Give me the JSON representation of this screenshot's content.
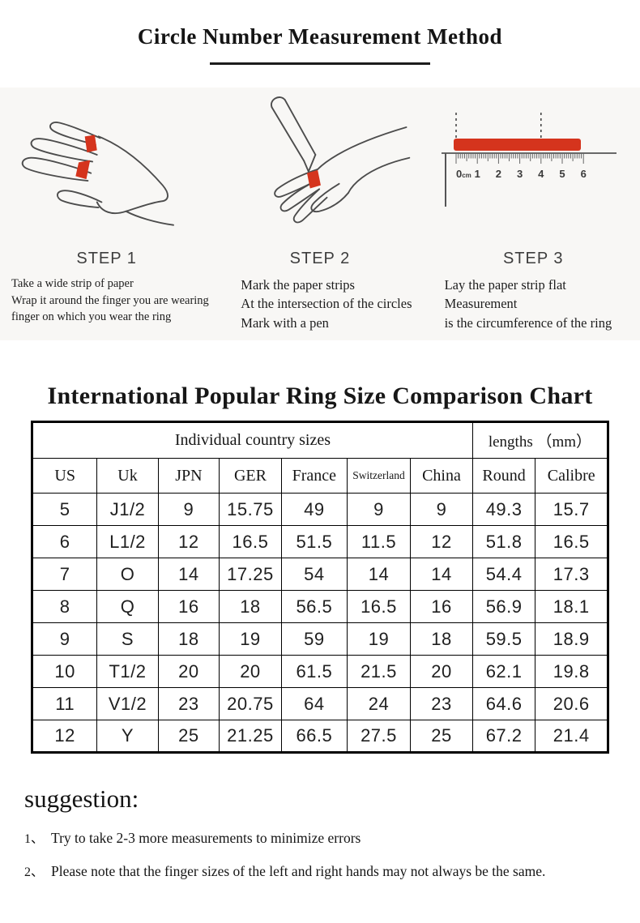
{
  "page": {
    "title": "Circle Number Measurement Method"
  },
  "steps": [
    {
      "label": "STEP 1",
      "icon": "hand-with-strip-icon",
      "lines": [
        "Take a wide strip of paper",
        "Wrap it around the finger you are wearing",
        "finger on which you wear the ring"
      ]
    },
    {
      "label": "STEP 2",
      "icon": "hand-with-pen-icon",
      "lines": [
        "Mark the paper strips",
        "At the intersection of the circles",
        "Mark with a pen"
      ]
    },
    {
      "label": "STEP 3",
      "icon": "ruler-icon",
      "lines": [
        "Lay the paper strip flat",
        "Measurement",
        "is the circumference of the ring"
      ]
    }
  ],
  "ruler": {
    "tick_labels": [
      "0",
      "1",
      "2",
      "3",
      "4",
      "5",
      "6"
    ],
    "unit": "cm"
  },
  "chart_data": {
    "type": "table",
    "title": "International Popular Ring Size Comparison Chart",
    "group_headers": [
      {
        "label": "Individual country sizes",
        "span": 7
      },
      {
        "label": "lengths （mm）",
        "span": 2
      }
    ],
    "columns": [
      "US",
      "Uk",
      "JPN",
      "GER",
      "France",
      "Switzerland",
      "China",
      "Round",
      "Calibre"
    ],
    "rows": [
      [
        "5",
        "J1/2",
        "9",
        "15.75",
        "49",
        "9",
        "9",
        "49.3",
        "15.7"
      ],
      [
        "6",
        "L1/2",
        "12",
        "16.5",
        "51.5",
        "11.5",
        "12",
        "51.8",
        "16.5"
      ],
      [
        "7",
        "O",
        "14",
        "17.25",
        "54",
        "14",
        "14",
        "54.4",
        "17.3"
      ],
      [
        "8",
        "Q",
        "16",
        "18",
        "56.5",
        "16.5",
        "16",
        "56.9",
        "18.1"
      ],
      [
        "9",
        "S",
        "18",
        "19",
        "59",
        "19",
        "18",
        "59.5",
        "18.9"
      ],
      [
        "10",
        "T1/2",
        "20",
        "20",
        "61.5",
        "21.5",
        "20",
        "62.1",
        "19.8"
      ],
      [
        "11",
        "V1/2",
        "23",
        "20.75",
        "64",
        "24",
        "23",
        "64.6",
        "20.6"
      ],
      [
        "12",
        "Y",
        "25",
        "21.25",
        "66.5",
        "27.5",
        "25",
        "67.2",
        "21.4"
      ]
    ]
  },
  "suggestion": {
    "heading": "suggestion:",
    "items": [
      {
        "num": "1、",
        "text": " Try to take 2-3 more measurements to minimize errors"
      },
      {
        "num": "2、",
        "text": "Please note that the finger sizes of the left and right hands may not always be the same."
      }
    ]
  },
  "colors": {
    "accent_red": "#d5341d",
    "band_bg": "#f8f7f5",
    "line_art": "#4c4c4c"
  }
}
